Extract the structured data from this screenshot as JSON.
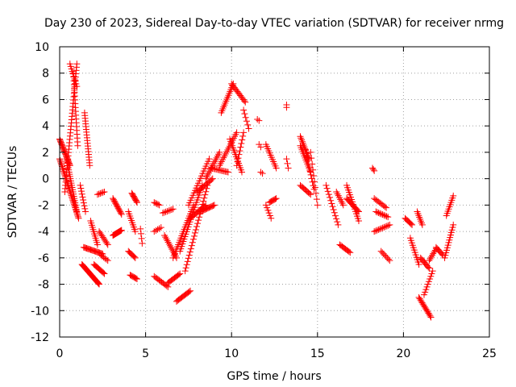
{
  "chart_data": {
    "type": "scatter",
    "title": "Day 230 of 2023, Sidereal Day-to-day VTEC variation (SDTVAR) for receiver nrmg",
    "xlabel": "GPS time / hours",
    "ylabel": "SDTVAR / TECUs",
    "xlim": [
      0,
      25
    ],
    "ylim": [
      -12,
      10
    ],
    "xticks": [
      0,
      5,
      10,
      15,
      20,
      25
    ],
    "yticks": [
      -12,
      -10,
      -8,
      -6,
      -4,
      -2,
      0,
      2,
      4,
      6,
      8,
      10
    ],
    "grid": true,
    "marker": "+",
    "color": "#ff0000",
    "series": [
      {
        "name": "SDTVAR",
        "tracks": [
          {
            "x0": 0.0,
            "x1": 0.6,
            "y0": 3.0,
            "y1": 1.0,
            "n": 25
          },
          {
            "x0": 0.3,
            "x1": 1.0,
            "y0": -1.0,
            "y1": 8.7,
            "n": 40
          },
          {
            "x0": 0.6,
            "x1": 1.0,
            "y0": 8.7,
            "y1": 7.0,
            "n": 10
          },
          {
            "x0": 0.8,
            "x1": 1.05,
            "y0": 8.0,
            "y1": 2.5,
            "n": 20
          },
          {
            "x0": 0.0,
            "x1": 1.1,
            "y0": 1.5,
            "y1": -3.0,
            "n": 40
          },
          {
            "x0": 0.4,
            "x1": 1.0,
            "y0": 1.5,
            "y1": -2.5,
            "n": 25
          },
          {
            "x0": 1.45,
            "x1": 1.75,
            "y0": 5.0,
            "y1": 1.0,
            "n": 20
          },
          {
            "x0": 1.2,
            "x1": 1.5,
            "y0": -0.5,
            "y1": -2.5,
            "n": 10
          },
          {
            "x0": 1.3,
            "x1": 2.3,
            "y0": -6.5,
            "y1": -8.0,
            "n": 30
          },
          {
            "x0": 1.4,
            "x1": 2.5,
            "y0": -5.2,
            "y1": -5.7,
            "n": 20
          },
          {
            "x0": 1.8,
            "x1": 2.2,
            "y0": -3.2,
            "y1": -5.0,
            "n": 12
          },
          {
            "x0": 2.0,
            "x1": 2.6,
            "y0": -6.5,
            "y1": -7.2,
            "n": 12
          },
          {
            "x0": 2.2,
            "x1": 2.6,
            "y0": -1.2,
            "y1": -1.0,
            "n": 6
          },
          {
            "x0": 2.3,
            "x1": 2.8,
            "y0": -4.0,
            "y1": -5.0,
            "n": 10
          },
          {
            "x0": 2.4,
            "x1": 2.8,
            "y0": -5.8,
            "y1": -6.2,
            "n": 6
          },
          {
            "x0": 3.1,
            "x1": 3.6,
            "y0": -1.5,
            "y1": -2.7,
            "n": 14
          },
          {
            "x0": 3.1,
            "x1": 3.6,
            "y0": -4.3,
            "y1": -3.9,
            "n": 14
          },
          {
            "x0": 4.2,
            "x1": 4.5,
            "y0": -1.1,
            "y1": -1.8,
            "n": 10
          },
          {
            "x0": 4.0,
            "x1": 4.4,
            "y0": -2.5,
            "y1": -4.0,
            "n": 10
          },
          {
            "x0": 4.0,
            "x1": 4.4,
            "y0": -5.5,
            "y1": -6.0,
            "n": 8
          },
          {
            "x0": 4.1,
            "x1": 4.5,
            "y0": -7.3,
            "y1": -7.6,
            "n": 8
          },
          {
            "x0": 4.7,
            "x1": 4.8,
            "y0": -3.8,
            "y1": -4.9,
            "n": 4
          },
          {
            "x0": 5.5,
            "x1": 5.8,
            "y0": -1.8,
            "y1": -2.0,
            "n": 5
          },
          {
            "x0": 5.5,
            "x1": 5.9,
            "y0": -4.0,
            "y1": -3.7,
            "n": 5
          },
          {
            "x0": 5.5,
            "x1": 6.3,
            "y0": -7.4,
            "y1": -8.2,
            "n": 12
          },
          {
            "x0": 6.0,
            "x1": 6.6,
            "y0": -2.6,
            "y1": -2.3,
            "n": 8
          },
          {
            "x0": 6.1,
            "x1": 6.8,
            "y0": -4.3,
            "y1": -6.0,
            "n": 14
          },
          {
            "x0": 6.3,
            "x1": 7.0,
            "y0": -7.9,
            "y1": -7.2,
            "n": 12
          },
          {
            "x0": 6.6,
            "x1": 7.8,
            "y0": -6.0,
            "y1": -2.0,
            "n": 25
          },
          {
            "x0": 6.8,
            "x1": 7.6,
            "y0": -9.3,
            "y1": -8.5,
            "n": 14
          },
          {
            "x0": 7.0,
            "x1": 8.3,
            "y0": -5.5,
            "y1": -0.5,
            "n": 28
          },
          {
            "x0": 7.3,
            "x1": 8.6,
            "y0": -7.0,
            "y1": -0.5,
            "n": 28
          },
          {
            "x0": 7.6,
            "x1": 8.5,
            "y0": -3.0,
            "y1": -2.0,
            "n": 15
          },
          {
            "x0": 7.5,
            "x1": 8.7,
            "y0": -2.0,
            "y1": 1.5,
            "n": 20
          },
          {
            "x0": 8.0,
            "x1": 8.9,
            "y0": -1.0,
            "y1": 0.0,
            "n": 14
          },
          {
            "x0": 8.2,
            "x1": 9.0,
            "y0": -2.5,
            "y1": -2.0,
            "n": 14
          },
          {
            "x0": 8.5,
            "x1": 9.3,
            "y0": 0.0,
            "y1": 2.0,
            "n": 15
          },
          {
            "x0": 8.8,
            "x1": 9.8,
            "y0": 0.8,
            "y1": 0.5,
            "n": 14
          },
          {
            "x0": 9.3,
            "x1": 10.3,
            "y0": 1.0,
            "y1": 3.5,
            "n": 18
          },
          {
            "x0": 9.4,
            "x1": 10.1,
            "y0": 5.0,
            "y1": 7.2,
            "n": 16
          },
          {
            "x0": 9.9,
            "x1": 10.6,
            "y0": 3.0,
            "y1": 0.5,
            "n": 16
          },
          {
            "x0": 10.0,
            "x1": 10.8,
            "y0": 7.2,
            "y1": 5.8,
            "n": 15
          },
          {
            "x0": 10.3,
            "x1": 10.7,
            "y0": 1.0,
            "y1": 3.5,
            "n": 10
          },
          {
            "x0": 10.7,
            "x1": 11.0,
            "y0": 5.2,
            "y1": 3.8,
            "n": 6
          },
          {
            "x0": 11.5,
            "x1": 11.6,
            "y0": 4.5,
            "y1": 4.4,
            "n": 2
          },
          {
            "x0": 11.6,
            "x1": 11.7,
            "y0": 2.6,
            "y1": 2.4,
            "n": 2
          },
          {
            "x0": 11.7,
            "x1": 11.8,
            "y0": 0.5,
            "y1": 0.4,
            "n": 2
          },
          {
            "x0": 12.0,
            "x1": 12.6,
            "y0": 2.6,
            "y1": 0.8,
            "n": 12
          },
          {
            "x0": 12.0,
            "x1": 12.3,
            "y0": -2.0,
            "y1": -3.0,
            "n": 6
          },
          {
            "x0": 12.2,
            "x1": 12.6,
            "y0": -1.8,
            "y1": -1.5,
            "n": 8
          },
          {
            "x0": 13.2,
            "x1": 13.2,
            "y0": 5.6,
            "y1": 5.4,
            "n": 2
          },
          {
            "x0": 13.2,
            "x1": 13.3,
            "y0": 1.5,
            "y1": 0.8,
            "n": 3
          },
          {
            "x0": 14.0,
            "x1": 14.5,
            "y0": 3.2,
            "y1": 1.5,
            "n": 14
          },
          {
            "x0": 14.0,
            "x1": 14.6,
            "y0": 2.5,
            "y1": 0.5,
            "n": 14
          },
          {
            "x0": 14.3,
            "x1": 14.8,
            "y0": 2.2,
            "y1": -0.8,
            "n": 12
          },
          {
            "x0": 14.0,
            "x1": 14.6,
            "y0": -0.5,
            "y1": -1.2,
            "n": 10
          },
          {
            "x0": 14.6,
            "x1": 15.0,
            "y0": 2.0,
            "y1": -2.0,
            "n": 10
          },
          {
            "x0": 15.5,
            "x1": 16.2,
            "y0": -0.5,
            "y1": -3.5,
            "n": 14
          },
          {
            "x0": 16.1,
            "x1": 16.5,
            "y0": -1.0,
            "y1": -2.0,
            "n": 8
          },
          {
            "x0": 16.3,
            "x1": 16.9,
            "y0": -5.0,
            "y1": -5.6,
            "n": 10
          },
          {
            "x0": 16.7,
            "x1": 17.4,
            "y0": -0.5,
            "y1": -3.2,
            "n": 16
          },
          {
            "x0": 16.7,
            "x1": 17.4,
            "y0": -1.5,
            "y1": -2.5,
            "n": 14
          },
          {
            "x0": 18.2,
            "x1": 18.3,
            "y0": 0.8,
            "y1": 0.6,
            "n": 3
          },
          {
            "x0": 18.3,
            "x1": 19.0,
            "y0": -1.5,
            "y1": -2.2,
            "n": 10
          },
          {
            "x0": 18.4,
            "x1": 19.1,
            "y0": -2.5,
            "y1": -2.9,
            "n": 10
          },
          {
            "x0": 18.3,
            "x1": 19.2,
            "y0": -4.0,
            "y1": -3.5,
            "n": 12
          },
          {
            "x0": 18.7,
            "x1": 19.2,
            "y0": -5.5,
            "y1": -6.2,
            "n": 8
          },
          {
            "x0": 20.1,
            "x1": 20.5,
            "y0": -3.0,
            "y1": -3.5,
            "n": 8
          },
          {
            "x0": 20.4,
            "x1": 20.9,
            "y0": -4.5,
            "y1": -6.5,
            "n": 12
          },
          {
            "x0": 20.8,
            "x1": 21.1,
            "y0": -2.5,
            "y1": -3.5,
            "n": 8
          },
          {
            "x0": 20.9,
            "x1": 21.6,
            "y0": -9.0,
            "y1": -10.5,
            "n": 16
          },
          {
            "x0": 21.0,
            "x1": 21.5,
            "y0": -6.0,
            "y1": -6.8,
            "n": 10
          },
          {
            "x0": 21.2,
            "x1": 21.7,
            "y0": -8.8,
            "y1": -7.0,
            "n": 10
          },
          {
            "x0": 21.5,
            "x1": 21.9,
            "y0": -6.2,
            "y1": -5.3,
            "n": 8
          },
          {
            "x0": 21.9,
            "x1": 22.3,
            "y0": -5.2,
            "y1": -5.8,
            "n": 8
          },
          {
            "x0": 22.4,
            "x1": 22.9,
            "y0": -6.0,
            "y1": -3.5,
            "n": 14
          },
          {
            "x0": 22.5,
            "x1": 22.9,
            "y0": -2.8,
            "y1": -1.3,
            "n": 10
          }
        ]
      }
    ]
  }
}
